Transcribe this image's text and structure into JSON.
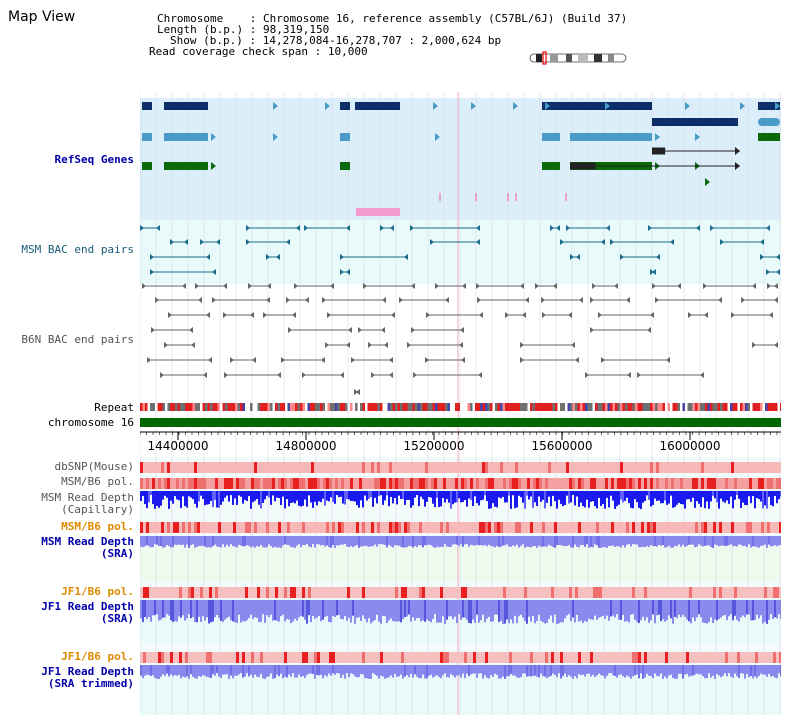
{
  "page": {
    "title": "Map View"
  },
  "info": {
    "chromosome_label": "Chromosome",
    "chromosome_value": "Chromosome 16, reference assembly (C57BL/6J) (Build 37)",
    "length_label": "Length (b.p.)",
    "length_value": "98,319,150",
    "show_label": "Show (b.p.)",
    "show_value": "14,278,084-16,278,707 : 2,000,624 bp",
    "coverage_label": "Read coverage check span",
    "coverage_value": "10,000"
  },
  "tracks": {
    "refseq": "RefSeq Genes",
    "msm_bac": "MSM BAC end pairs",
    "b6n_bac": "B6N BAC end pairs",
    "repeat": "Repeat",
    "chromosome": "chromosome 16",
    "dbsnp": "dbSNP(Mouse)",
    "msm_b6_pol_1": "MSM/B6 pol.",
    "msm_depth_cap_1": "MSM Read Depth",
    "msm_depth_cap_2": "(Capillary)",
    "msm_b6_pol_2": "MSM/B6 pol.",
    "msm_depth_sra_1": "MSM Read Depth",
    "msm_depth_sra_2": "(SRA)",
    "jf1_b6_pol_1": "JF1/B6 pol.",
    "jf1_depth_sra_1": "JF1 Read Depth",
    "jf1_depth_sra_2": "(SRA)",
    "jf1_b6_pol_2": "JF1/B6 pol.",
    "jf1_depth_trim_1": "JF1 Read Depth",
    "jf1_depth_trim_2": "(SRA trimmed)"
  },
  "axis": {
    "ticks": [
      "14400000",
      "14800000",
      "15200000",
      "15600000",
      "16000000"
    ]
  },
  "colors": {
    "refseq_bg": "#dbeefa",
    "bac_bg": "#e8fafa",
    "gene_dark": "#0b2f66",
    "gene_light": "#4a9cc6",
    "gene_green": "#0a6a0a",
    "chromosome_bar": "#006600",
    "depth_blue": "#1a1aee",
    "depth_lavender": "#8a8aee",
    "pol_red": "#ee2222",
    "msm_sra_bg": "#eefaee",
    "jf1_bg": "#e8fafa"
  }
}
